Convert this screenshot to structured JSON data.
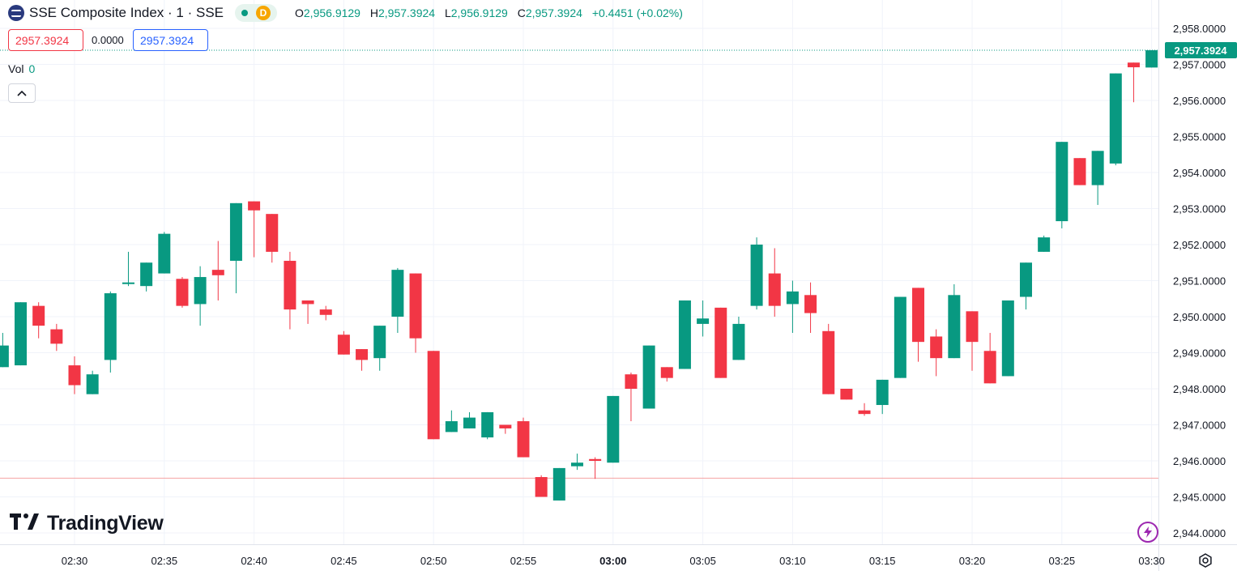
{
  "header": {
    "title": "SSE Composite Index · 1 · SSE",
    "badge_letter": "D",
    "ohlc": {
      "o_label": "O",
      "o_value": "2,956.9129",
      "h_label": "H",
      "h_value": "2,957.3924",
      "l_label": "L",
      "l_value": "2,956.9129",
      "c_label": "C",
      "c_value": "2,957.3924",
      "change": "+0.4451 (+0.02%)"
    }
  },
  "trade": {
    "sell_price": "2957.3924",
    "spread": "0.0000",
    "buy_price": "2957.3924"
  },
  "volume": {
    "label": "Vol",
    "value": "0"
  },
  "branding": {
    "name": "TradingView"
  },
  "colors": {
    "up": "#089981",
    "down": "#f23645",
    "grid": "#f0f3fa",
    "text": "#131722",
    "last_price_bg": "#089981"
  },
  "icons": {
    "settings": "gear-icon",
    "collapse": "chevron-up-icon",
    "alert": "lightning-icon"
  },
  "chart_data": {
    "type": "candlestick",
    "title": "SSE Composite Index · 1 · SSE",
    "interval_minutes": 1,
    "xlabels": [
      "02:30",
      "02:35",
      "02:40",
      "02:45",
      "02:50",
      "02:55",
      "03:00",
      "03:05",
      "03:10",
      "03:15",
      "03:20",
      "03:25",
      "03:30"
    ],
    "bold_xlabel": "03:00",
    "ylabels": [
      "2,958.0000",
      "2,957.0000",
      "2,956.0000",
      "2,955.0000",
      "2,954.0000",
      "2,953.0000",
      "2,952.0000",
      "2,951.0000",
      "2,950.0000",
      "2,949.0000",
      "2,948.0000",
      "2,947.0000",
      "2,946.0000",
      "2,945.0000",
      "2,944.0000"
    ],
    "ylim": [
      2943.6,
      2958.6
    ],
    "last_price_label": "2,957.3924",
    "last_price": 2957.3924,
    "reference_line": 2945.52,
    "grid": true,
    "candles": [
      {
        "t": "02:26",
        "o": 2948.6,
        "h": 2949.55,
        "l": 2948.6,
        "c": 2949.2
      },
      {
        "t": "02:27",
        "o": 2948.65,
        "h": 2950.4,
        "l": 2948.65,
        "c": 2950.4
      },
      {
        "t": "02:28",
        "o": 2950.3,
        "h": 2950.4,
        "l": 2949.4,
        "c": 2949.75
      },
      {
        "t": "02:29",
        "o": 2949.65,
        "h": 2949.8,
        "l": 2949.05,
        "c": 2949.25
      },
      {
        "t": "02:30",
        "o": 2948.65,
        "h": 2948.9,
        "l": 2947.85,
        "c": 2948.1
      },
      {
        "t": "02:31",
        "o": 2947.85,
        "h": 2948.5,
        "l": 2947.85,
        "c": 2948.4
      },
      {
        "t": "02:32",
        "o": 2948.8,
        "h": 2950.7,
        "l": 2948.45,
        "c": 2950.65
      },
      {
        "t": "02:33",
        "o": 2950.95,
        "h": 2951.8,
        "l": 2950.85,
        "c": 2950.95
      },
      {
        "t": "02:34",
        "o": 2950.85,
        "h": 2951.5,
        "l": 2950.7,
        "c": 2951.5
      },
      {
        "t": "02:35",
        "o": 2951.2,
        "h": 2952.35,
        "l": 2951.2,
        "c": 2952.3
      },
      {
        "t": "02:36",
        "o": 2951.05,
        "h": 2951.1,
        "l": 2950.25,
        "c": 2950.3
      },
      {
        "t": "02:37",
        "o": 2950.35,
        "h": 2951.4,
        "l": 2949.75,
        "c": 2951.1
      },
      {
        "t": "02:38",
        "o": 2951.3,
        "h": 2952.1,
        "l": 2950.45,
        "c": 2951.15
      },
      {
        "t": "02:39",
        "o": 2951.55,
        "h": 2953.15,
        "l": 2950.65,
        "c": 2953.15
      },
      {
        "t": "02:40",
        "o": 2953.2,
        "h": 2953.2,
        "l": 2951.65,
        "c": 2952.95
      },
      {
        "t": "02:41",
        "o": 2952.85,
        "h": 2952.85,
        "l": 2951.5,
        "c": 2951.8
      },
      {
        "t": "02:42",
        "o": 2951.55,
        "h": 2951.8,
        "l": 2949.65,
        "c": 2950.2
      },
      {
        "t": "02:43",
        "o": 2950.45,
        "h": 2950.45,
        "l": 2949.8,
        "c": 2950.35
      },
      {
        "t": "02:44",
        "o": 2950.2,
        "h": 2950.3,
        "l": 2949.9,
        "c": 2950.05
      },
      {
        "t": "02:45",
        "o": 2949.5,
        "h": 2949.6,
        "l": 2948.95,
        "c": 2948.95
      },
      {
        "t": "02:46",
        "o": 2949.1,
        "h": 2949.1,
        "l": 2948.5,
        "c": 2948.8
      },
      {
        "t": "02:47",
        "o": 2948.85,
        "h": 2949.75,
        "l": 2948.5,
        "c": 2949.75
      },
      {
        "t": "02:48",
        "o": 2950.0,
        "h": 2951.35,
        "l": 2949.55,
        "c": 2951.3
      },
      {
        "t": "02:49",
        "o": 2951.2,
        "h": 2951.2,
        "l": 2949.0,
        "c": 2949.4
      },
      {
        "t": "02:50",
        "o": 2949.05,
        "h": 2949.05,
        "l": 2946.6,
        "c": 2946.6
      },
      {
        "t": "02:51",
        "o": 2946.8,
        "h": 2947.4,
        "l": 2946.8,
        "c": 2947.1
      },
      {
        "t": "02:52",
        "o": 2946.9,
        "h": 2947.35,
        "l": 2946.9,
        "c": 2947.2
      },
      {
        "t": "02:53",
        "o": 2946.65,
        "h": 2947.35,
        "l": 2946.6,
        "c": 2947.35
      },
      {
        "t": "02:54",
        "o": 2947.0,
        "h": 2947.0,
        "l": 2946.75,
        "c": 2946.9
      },
      {
        "t": "02:55",
        "o": 2947.1,
        "h": 2947.2,
        "l": 2946.1,
        "c": 2946.1
      },
      {
        "t": "02:56",
        "o": 2945.55,
        "h": 2945.6,
        "l": 2945.0,
        "c": 2945.0
      },
      {
        "t": "02:57",
        "o": 2944.9,
        "h": 2945.8,
        "l": 2944.9,
        "c": 2945.8
      },
      {
        "t": "02:58",
        "o": 2945.85,
        "h": 2946.2,
        "l": 2945.75,
        "c": 2945.95
      },
      {
        "t": "02:59",
        "o": 2946.05,
        "h": 2946.1,
        "l": 2945.5,
        "c": 2946.0
      },
      {
        "t": "03:00",
        "o": 2945.95,
        "h": 2947.8,
        "l": 2945.95,
        "c": 2947.8
      },
      {
        "t": "03:01",
        "o": 2948.4,
        "h": 2948.45,
        "l": 2947.1,
        "c": 2948.0
      },
      {
        "t": "03:02",
        "o": 2947.45,
        "h": 2949.2,
        "l": 2947.45,
        "c": 2949.2
      },
      {
        "t": "03:03",
        "o": 2948.6,
        "h": 2948.6,
        "l": 2948.2,
        "c": 2948.3
      },
      {
        "t": "03:04",
        "o": 2948.55,
        "h": 2950.45,
        "l": 2948.55,
        "c": 2950.45
      },
      {
        "t": "03:05",
        "o": 2949.8,
        "h": 2950.45,
        "l": 2949.45,
        "c": 2949.95
      },
      {
        "t": "03:06",
        "o": 2950.25,
        "h": 2950.25,
        "l": 2948.3,
        "c": 2948.3
      },
      {
        "t": "03:07",
        "o": 2948.8,
        "h": 2950.0,
        "l": 2948.8,
        "c": 2949.8
      },
      {
        "t": "03:08",
        "o": 2950.3,
        "h": 2952.2,
        "l": 2950.2,
        "c": 2952.0
      },
      {
        "t": "03:09",
        "o": 2951.2,
        "h": 2951.9,
        "l": 2950.0,
        "c": 2950.3
      },
      {
        "t": "03:10",
        "o": 2950.35,
        "h": 2951.0,
        "l": 2949.55,
        "c": 2950.7
      },
      {
        "t": "03:11",
        "o": 2950.6,
        "h": 2950.95,
        "l": 2949.55,
        "c": 2950.1
      },
      {
        "t": "03:12",
        "o": 2949.6,
        "h": 2949.8,
        "l": 2947.85,
        "c": 2947.85
      },
      {
        "t": "03:13",
        "o": 2948.0,
        "h": 2948.0,
        "l": 2947.7,
        "c": 2947.7
      },
      {
        "t": "03:14",
        "o": 2947.4,
        "h": 2947.6,
        "l": 2947.25,
        "c": 2947.3
      },
      {
        "t": "03:15",
        "o": 2947.55,
        "h": 2948.25,
        "l": 2947.3,
        "c": 2948.25
      },
      {
        "t": "03:16",
        "o": 2948.3,
        "h": 2950.55,
        "l": 2948.3,
        "c": 2950.55
      },
      {
        "t": "03:17",
        "o": 2950.8,
        "h": 2950.8,
        "l": 2948.75,
        "c": 2949.3
      },
      {
        "t": "03:18",
        "o": 2949.45,
        "h": 2949.65,
        "l": 2948.35,
        "c": 2948.85
      },
      {
        "t": "03:19",
        "o": 2948.85,
        "h": 2950.9,
        "l": 2948.85,
        "c": 2950.6
      },
      {
        "t": "03:20",
        "o": 2950.15,
        "h": 2950.15,
        "l": 2948.5,
        "c": 2949.3
      },
      {
        "t": "03:21",
        "o": 2949.05,
        "h": 2949.55,
        "l": 2948.15,
        "c": 2948.15
      },
      {
        "t": "03:22",
        "o": 2948.35,
        "h": 2950.45,
        "l": 2948.35,
        "c": 2950.45
      },
      {
        "t": "03:23",
        "o": 2950.55,
        "h": 2951.5,
        "l": 2950.2,
        "c": 2951.5
      },
      {
        "t": "03:24",
        "o": 2951.8,
        "h": 2952.25,
        "l": 2951.8,
        "c": 2952.2
      },
      {
        "t": "03:25",
        "o": 2952.65,
        "h": 2954.85,
        "l": 2952.45,
        "c": 2954.85
      },
      {
        "t": "03:26",
        "o": 2954.4,
        "h": 2954.4,
        "l": 2953.65,
        "c": 2953.65
      },
      {
        "t": "03:27",
        "o": 2953.65,
        "h": 2954.6,
        "l": 2953.1,
        "c": 2954.6
      },
      {
        "t": "03:28",
        "o": 2954.25,
        "h": 2956.75,
        "l": 2954.2,
        "c": 2956.75
      },
      {
        "t": "03:29",
        "o": 2957.05,
        "h": 2957.05,
        "l": 2955.95,
        "c": 2956.92
      },
      {
        "t": "03:30",
        "o": 2956.9129,
        "h": 2957.3924,
        "l": 2956.9129,
        "c": 2957.3924
      }
    ]
  }
}
